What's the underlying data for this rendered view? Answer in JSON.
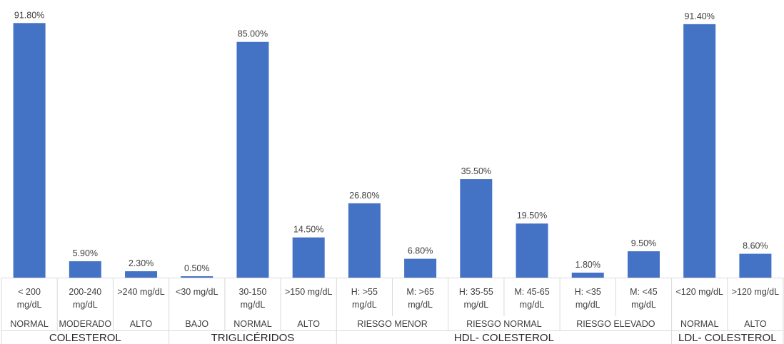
{
  "chart_data": {
    "type": "bar",
    "title": "",
    "xlabel": "",
    "ylabel": "",
    "ylim": [
      0,
      100
    ],
    "bar_color": "#4472C4",
    "grid": false,
    "legend": "none",
    "categories": [
      {
        "label": [
          "< 200",
          "mg/dL"
        ],
        "sub": "NORMAL",
        "group": "COLESTEROL"
      },
      {
        "label": [
          "200-240",
          "mg/dL"
        ],
        "sub": "MODERADO",
        "group": "COLESTEROL"
      },
      {
        "label": [
          ">240 mg/dL"
        ],
        "sub": "ALTO",
        "group": "COLESTEROL"
      },
      {
        "label": [
          "<30 mg/dL"
        ],
        "sub": "BAJO",
        "group": "TRIGLICÉRIDOS"
      },
      {
        "label": [
          "30-150",
          "mg/dL"
        ],
        "sub": "NORMAL",
        "group": "TRIGLICÉRIDOS"
      },
      {
        "label": [
          ">150 mg/dL"
        ],
        "sub": "ALTO",
        "group": "TRIGLICÉRIDOS"
      },
      {
        "label": [
          "H: >55",
          "mg/dL"
        ],
        "sub": "RIESGO MENOR",
        "group": "HDL- COLESTEROL"
      },
      {
        "label": [
          "M: >65",
          "mg/dL"
        ],
        "sub": "RIESGO MENOR",
        "group": "HDL- COLESTEROL"
      },
      {
        "label": [
          "H: 35-55",
          "mg/dL"
        ],
        "sub": "RIESGO NORMAL",
        "group": "HDL- COLESTEROL"
      },
      {
        "label": [
          "M: 45-65",
          "mg/dL"
        ],
        "sub": "RIESGO NORMAL",
        "group": "HDL- COLESTEROL"
      },
      {
        "label": [
          "H: <35",
          "mg/dL"
        ],
        "sub": "RIESGO ELEVADO",
        "group": "HDL- COLESTEROL"
      },
      {
        "label": [
          "M: <45",
          "mg/dL"
        ],
        "sub": "RIESGO ELEVADO",
        "group": "HDL- COLESTEROL"
      },
      {
        "label": [
          "<120 mg/dL"
        ],
        "sub": "NORMAL",
        "group": "LDL- COLESTEROL"
      },
      {
        "label": [
          ">120 mg/dL"
        ],
        "sub": "ALTO",
        "group": "LDL- COLESTEROL"
      }
    ],
    "values": [
      91.8,
      5.9,
      2.3,
      0.5,
      85.0,
      14.5,
      26.8,
      6.8,
      35.5,
      19.5,
      1.8,
      9.5,
      91.4,
      8.6
    ],
    "data_labels": [
      "91.80%",
      "5.90%",
      "2.30%",
      "0.50%",
      "85.00%",
      "14.50%",
      "26.80%",
      "6.80%",
      "35.50%",
      "19.50%",
      "1.80%",
      "9.50%",
      "91.40%",
      "8.60%"
    ]
  }
}
